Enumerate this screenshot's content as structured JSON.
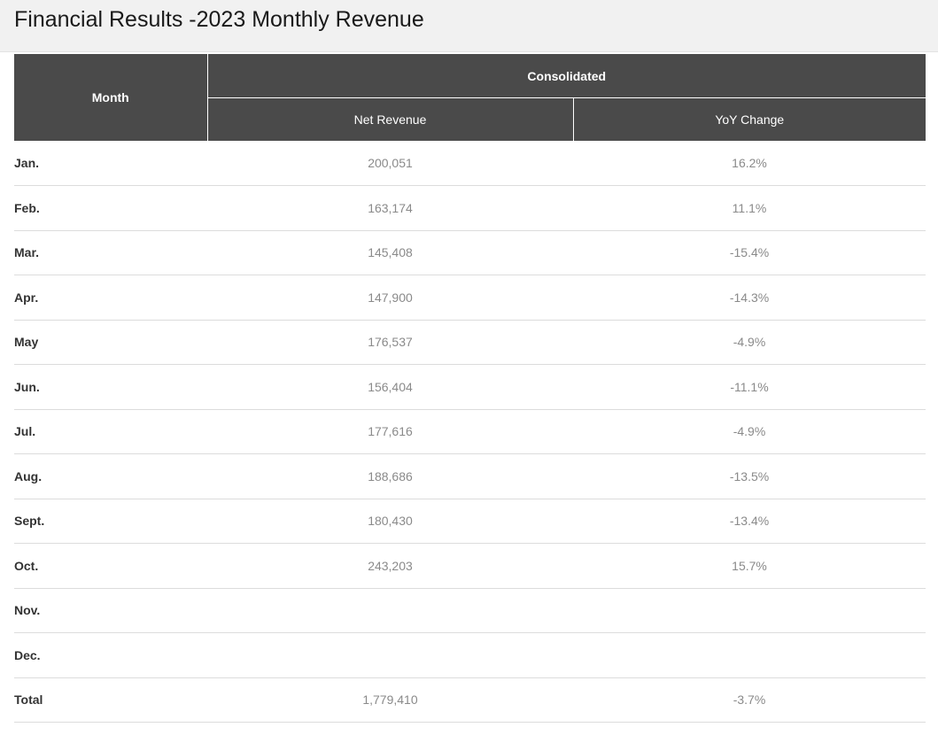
{
  "page": {
    "title": "Financial Results -2023 Monthly Revenue"
  },
  "table": {
    "headers": {
      "month": "Month",
      "group": "Consolidated",
      "net_revenue": "Net Revenue",
      "yoy_change": "YoY Change"
    },
    "rows": [
      {
        "month": "Jan.",
        "net_revenue": "200,051",
        "yoy_change": "16.2%"
      },
      {
        "month": "Feb.",
        "net_revenue": "163,174",
        "yoy_change": "11.1%"
      },
      {
        "month": "Mar.",
        "net_revenue": "145,408",
        "yoy_change": "-15.4%"
      },
      {
        "month": "Apr.",
        "net_revenue": "147,900",
        "yoy_change": "-14.3%"
      },
      {
        "month": "May",
        "net_revenue": "176,537",
        "yoy_change": "-4.9%"
      },
      {
        "month": "Jun.",
        "net_revenue": "156,404",
        "yoy_change": "-11.1%"
      },
      {
        "month": "Jul.",
        "net_revenue": "177,616",
        "yoy_change": "-4.9%"
      },
      {
        "month": "Aug.",
        "net_revenue": "188,686",
        "yoy_change": "-13.5%"
      },
      {
        "month": "Sept.",
        "net_revenue": "180,430",
        "yoy_change": "-13.4%"
      },
      {
        "month": "Oct.",
        "net_revenue": "243,203",
        "yoy_change": "15.7%"
      },
      {
        "month": "Nov.",
        "net_revenue": "",
        "yoy_change": ""
      },
      {
        "month": "Dec.",
        "net_revenue": "",
        "yoy_change": ""
      },
      {
        "month": "Total",
        "net_revenue": "1,779,410",
        "yoy_change": "-3.7%"
      }
    ]
  },
  "colors": {
    "header_bg": "#4a4a4a",
    "title_bg": "#f1f1f1",
    "value_text": "#8a8a8a"
  }
}
